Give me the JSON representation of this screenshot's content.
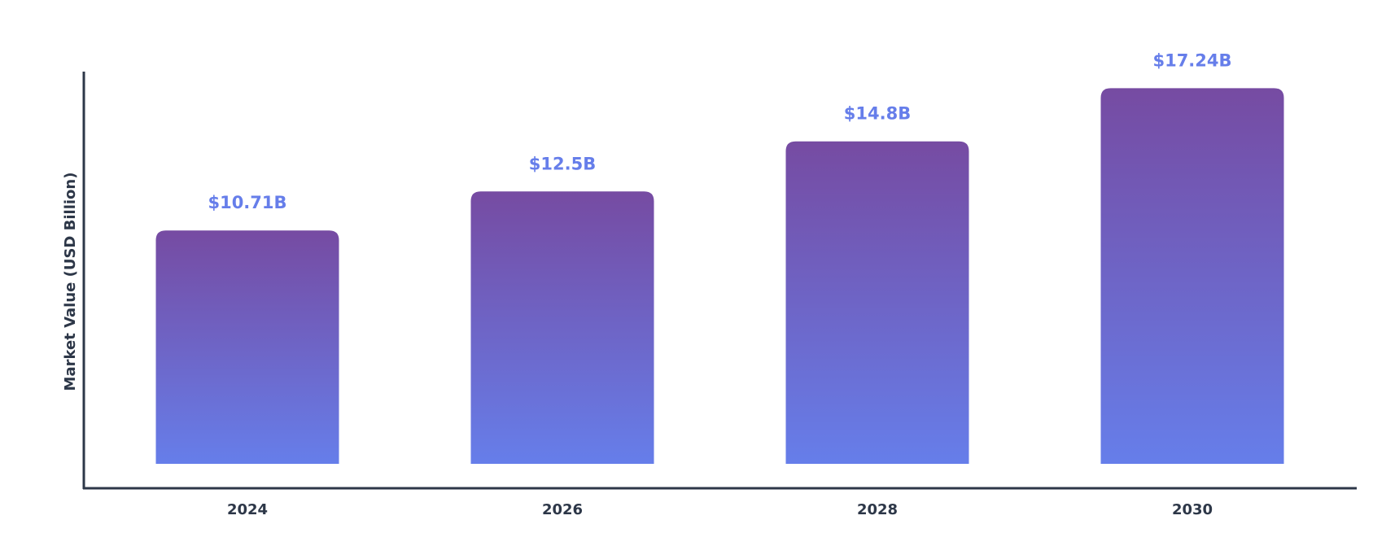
{
  "chart_data": {
    "type": "bar",
    "categories": [
      "2024",
      "2026",
      "2028",
      "2030"
    ],
    "values": [
      10.71,
      12.5,
      14.8,
      17.24
    ],
    "value_labels": [
      "$10.71B",
      "$12.5B",
      "$14.8B",
      "$17.24B"
    ],
    "ylabel": "Market Value (USD Billion)",
    "ylim": [
      0,
      18
    ],
    "grid": false,
    "legend": "none"
  },
  "colors": {
    "bar_top": "#764ba2",
    "bar_bottom": "#667eea",
    "value_label": "#667eea",
    "axis": "#2d3748",
    "text": "#2d3748"
  }
}
